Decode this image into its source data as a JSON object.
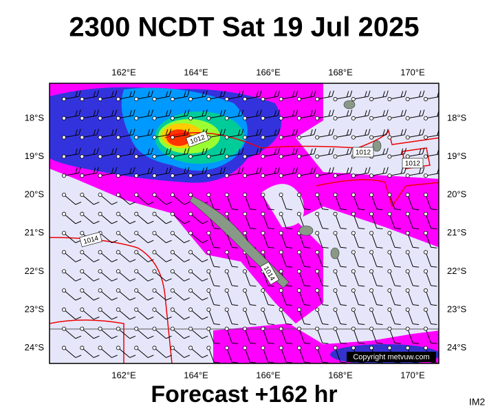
{
  "title": "2300 NCDT Sat 19 Jul 2025",
  "map": {
    "lon_labels": [
      "162°E",
      "164°E",
      "166°E",
      "168°E",
      "170°E"
    ],
    "lat_labels": [
      "18°S",
      "19°S",
      "20°S",
      "21°S",
      "22°S",
      "23°S",
      "24°S"
    ],
    "isobar_labels": [
      "1012",
      "1012",
      "1012",
      "1014",
      "1014"
    ],
    "copyright": "Copyright metvuw.com"
  },
  "footer": {
    "forecast": "Forecast +162 hr",
    "code": "IM2"
  }
}
